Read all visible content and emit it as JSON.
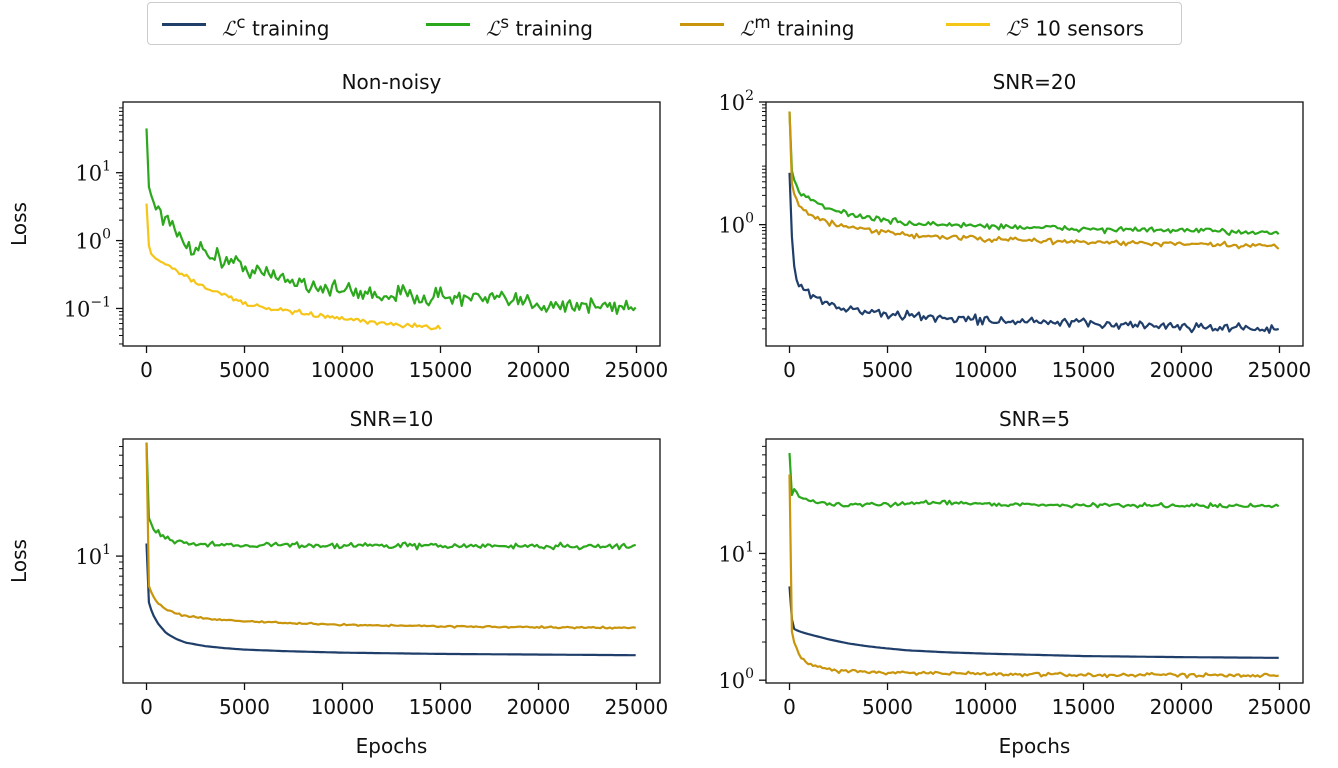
{
  "legend": {
    "items": [
      {
        "symbol": "ℒ",
        "sup": "c",
        "text": "training",
        "color": "#1f3e6a"
      },
      {
        "symbol": "ℒ",
        "sup": "s",
        "text": "training",
        "color": "#2ca81c"
      },
      {
        "symbol": "ℒ",
        "sup": "m",
        "text": "training",
        "color": "#c9950c"
      },
      {
        "symbol": "ℒ",
        "sup": "s",
        "text": "10 sensors",
        "color": "#f5c518"
      }
    ]
  },
  "chart_data": [
    {
      "type": "line",
      "title": "Non-noisy",
      "xlabel": "",
      "ylabel": "Loss",
      "yscale": "log",
      "xlim": [
        -1200,
        26200
      ],
      "ylim": [
        0.028,
        110
      ],
      "xticks": [
        0,
        5000,
        10000,
        15000,
        20000,
        25000
      ],
      "yticks": [
        {
          "value": 10,
          "base": "10",
          "exp": "1"
        },
        {
          "value": 1,
          "base": "10",
          "exp": "0"
        },
        {
          "value": 0.1,
          "base": "10",
          "exp": "−1"
        }
      ],
      "series": [
        {
          "color": "#2ca81c",
          "noise": 0.22,
          "x": [
            0,
            100,
            300,
            600,
            1000,
            1500,
            2000,
            3000,
            4000,
            5000,
            6000,
            8000,
            10000,
            12000,
            15000,
            20000,
            25000
          ],
          "y": [
            45,
            6.5,
            4.0,
            3.0,
            2.0,
            1.3,
            0.9,
            0.7,
            0.5,
            0.42,
            0.32,
            0.24,
            0.18,
            0.16,
            0.15,
            0.12,
            0.1
          ]
        },
        {
          "color": "#f5c518",
          "noise": 0.05,
          "x": [
            0,
            100,
            200,
            500,
            1000,
            2000,
            3000,
            4000,
            5000,
            6000,
            8000,
            10000,
            12000,
            14000,
            15000
          ],
          "y": [
            3.5,
            0.9,
            0.65,
            0.55,
            0.45,
            0.3,
            0.2,
            0.16,
            0.12,
            0.1,
            0.085,
            0.07,
            0.06,
            0.055,
            0.05
          ]
        }
      ]
    },
    {
      "type": "line",
      "title": "SNR=20",
      "xlabel": "",
      "ylabel": "",
      "yscale": "log",
      "xlim": [
        -1200,
        26200
      ],
      "ylim": [
        0.0105,
        100
      ],
      "xticks": [
        0,
        5000,
        10000,
        15000,
        20000,
        25000
      ],
      "yticks": [
        {
          "value": 100,
          "base": "10",
          "exp": "2"
        },
        {
          "value": 1,
          "base": "10",
          "exp": "0"
        }
      ],
      "series": [
        {
          "color": "#1f3e6a",
          "noise": 0.12,
          "x": [
            0,
            150,
            300,
            600,
            1000,
            2000,
            3000,
            5000,
            8000,
            12000,
            16000,
            20000,
            25000
          ],
          "y": [
            7,
            0.35,
            0.15,
            0.1,
            0.08,
            0.05,
            0.042,
            0.034,
            0.03,
            0.026,
            0.024,
            0.022,
            0.02
          ]
        },
        {
          "color": "#2ca81c",
          "noise": 0.07,
          "x": [
            0,
            100,
            300,
            600,
            1000,
            2000,
            4000,
            6000,
            10000,
            15000,
            20000,
            25000
          ],
          "y": [
            70,
            8,
            4.5,
            3.0,
            2.6,
            1.8,
            1.3,
            1.05,
            0.95,
            0.85,
            0.8,
            0.75
          ]
        },
        {
          "color": "#c9950c",
          "noise": 0.07,
          "x": [
            0,
            100,
            300,
            600,
            1000,
            2000,
            4000,
            6000,
            10000,
            15000,
            20000,
            25000
          ],
          "y": [
            70,
            5,
            2.6,
            1.8,
            1.5,
            1.05,
            0.8,
            0.68,
            0.58,
            0.52,
            0.48,
            0.44
          ]
        }
      ]
    },
    {
      "type": "line",
      "title": "SNR=10",
      "xlabel": "Epochs",
      "ylabel": "Loss",
      "yscale": "log",
      "xlim": [
        -1200,
        26200
      ],
      "ylim": [
        1.05,
        80
      ],
      "xticks": [
        0,
        5000,
        10000,
        15000,
        20000,
        25000
      ],
      "yticks": [
        {
          "value": 10,
          "base": "10",
          "exp": "1"
        }
      ],
      "series": [
        {
          "color": "#1f3e6a",
          "noise": 0,
          "x": [
            0,
            100,
            300,
            600,
            1000,
            1500,
            2000,
            3000,
            4000,
            5000,
            7000,
            10000,
            15000,
            20000,
            25000
          ],
          "y": [
            12.5,
            4.5,
            3.6,
            3.0,
            2.55,
            2.3,
            2.15,
            2.02,
            1.95,
            1.9,
            1.85,
            1.8,
            1.76,
            1.74,
            1.72
          ]
        },
        {
          "color": "#2ca81c",
          "noise": 0.035,
          "x": [
            0,
            100,
            300,
            600,
            1000,
            1500,
            2000,
            3000,
            5000,
            10000,
            15000,
            20000,
            25000
          ],
          "y": [
            75,
            20,
            17,
            15,
            14,
            13.2,
            12.6,
            12.3,
            12.2,
            12.1,
            12.0,
            11.9,
            11.9
          ]
        },
        {
          "color": "#c9950c",
          "noise": 0.01,
          "x": [
            0,
            100,
            300,
            600,
            1000,
            1500,
            2000,
            3000,
            5000,
            7000,
            10000,
            15000,
            20000,
            25000
          ],
          "y": [
            75,
            6.0,
            5.0,
            4.3,
            3.9,
            3.6,
            3.45,
            3.3,
            3.15,
            3.05,
            2.95,
            2.88,
            2.82,
            2.8
          ]
        }
      ]
    },
    {
      "type": "line",
      "title": "SNR=5",
      "xlabel": "Epochs",
      "ylabel": "",
      "yscale": "log",
      "xlim": [
        -1200,
        26200
      ],
      "ylim": [
        0.95,
        80
      ],
      "xticks": [
        0,
        5000,
        10000,
        15000,
        20000,
        25000
      ],
      "yticks": [
        {
          "value": 10,
          "base": "10",
          "exp": "1"
        },
        {
          "value": 1,
          "base": "10",
          "exp": "0"
        }
      ],
      "series": [
        {
          "color": "#1f3e6a",
          "noise": 0,
          "x": [
            0,
            150,
            300,
            600,
            1000,
            2000,
            3000,
            4000,
            5000,
            6000,
            8000,
            10000,
            15000,
            20000,
            25000
          ],
          "y": [
            5.5,
            2.6,
            2.5,
            2.4,
            2.3,
            2.1,
            1.95,
            1.85,
            1.78,
            1.72,
            1.66,
            1.62,
            1.55,
            1.52,
            1.5
          ]
        },
        {
          "color": "#2ca81c",
          "noise": 0.025,
          "x": [
            0,
            100,
            200,
            400,
            1000,
            2000,
            4000,
            6000,
            8000,
            10000,
            15000,
            20000,
            25000
          ],
          "y": [
            62,
            28,
            33,
            29,
            26,
            24.5,
            24,
            24.8,
            25.5,
            24.5,
            24,
            24,
            23.5
          ]
        },
        {
          "color": "#c9950c",
          "noise": 0.025,
          "x": [
            0,
            100,
            300,
            600,
            1000,
            1500,
            2000,
            3000,
            5000,
            10000,
            15000,
            20000,
            25000
          ],
          "y": [
            42,
            2.5,
            1.8,
            1.5,
            1.35,
            1.28,
            1.22,
            1.18,
            1.15,
            1.12,
            1.1,
            1.1,
            1.1
          ]
        }
      ]
    }
  ]
}
